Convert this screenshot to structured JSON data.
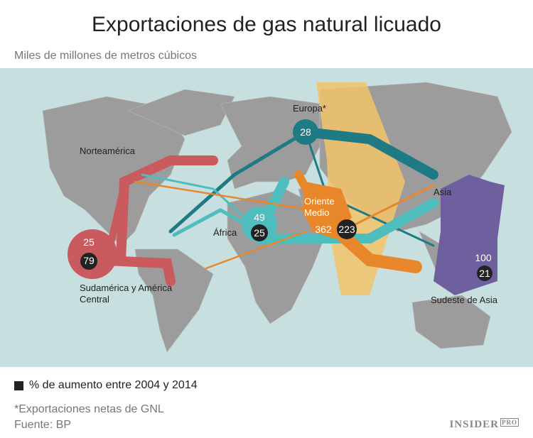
{
  "header": {
    "title": "Exportaciones de gas natural licuado",
    "subtitle": "Miles de millones de metros cúbicos"
  },
  "regions": [
    {
      "label": "Europa*",
      "value": "28"
    },
    {
      "label": "África",
      "value": "49",
      "growth": "25"
    },
    {
      "label": "Oriente Medio",
      "value": "362",
      "growth": "223"
    },
    {
      "label": "Sudamérica y América Central",
      "value": "25",
      "growth": "79"
    },
    {
      "label": "Sudeste de Asia",
      "value": "100",
      "growth": "21"
    },
    {
      "label": "Norteamérica"
    },
    {
      "label": "Asia"
    }
  ],
  "legend": "% de aumento entre 2004 y 2014",
  "footnotes": [
    "*Exportaciones netas de GNL",
    "Fuente: BP"
  ],
  "logo": {
    "name": "INSIDER",
    "badge": "PRO"
  }
}
